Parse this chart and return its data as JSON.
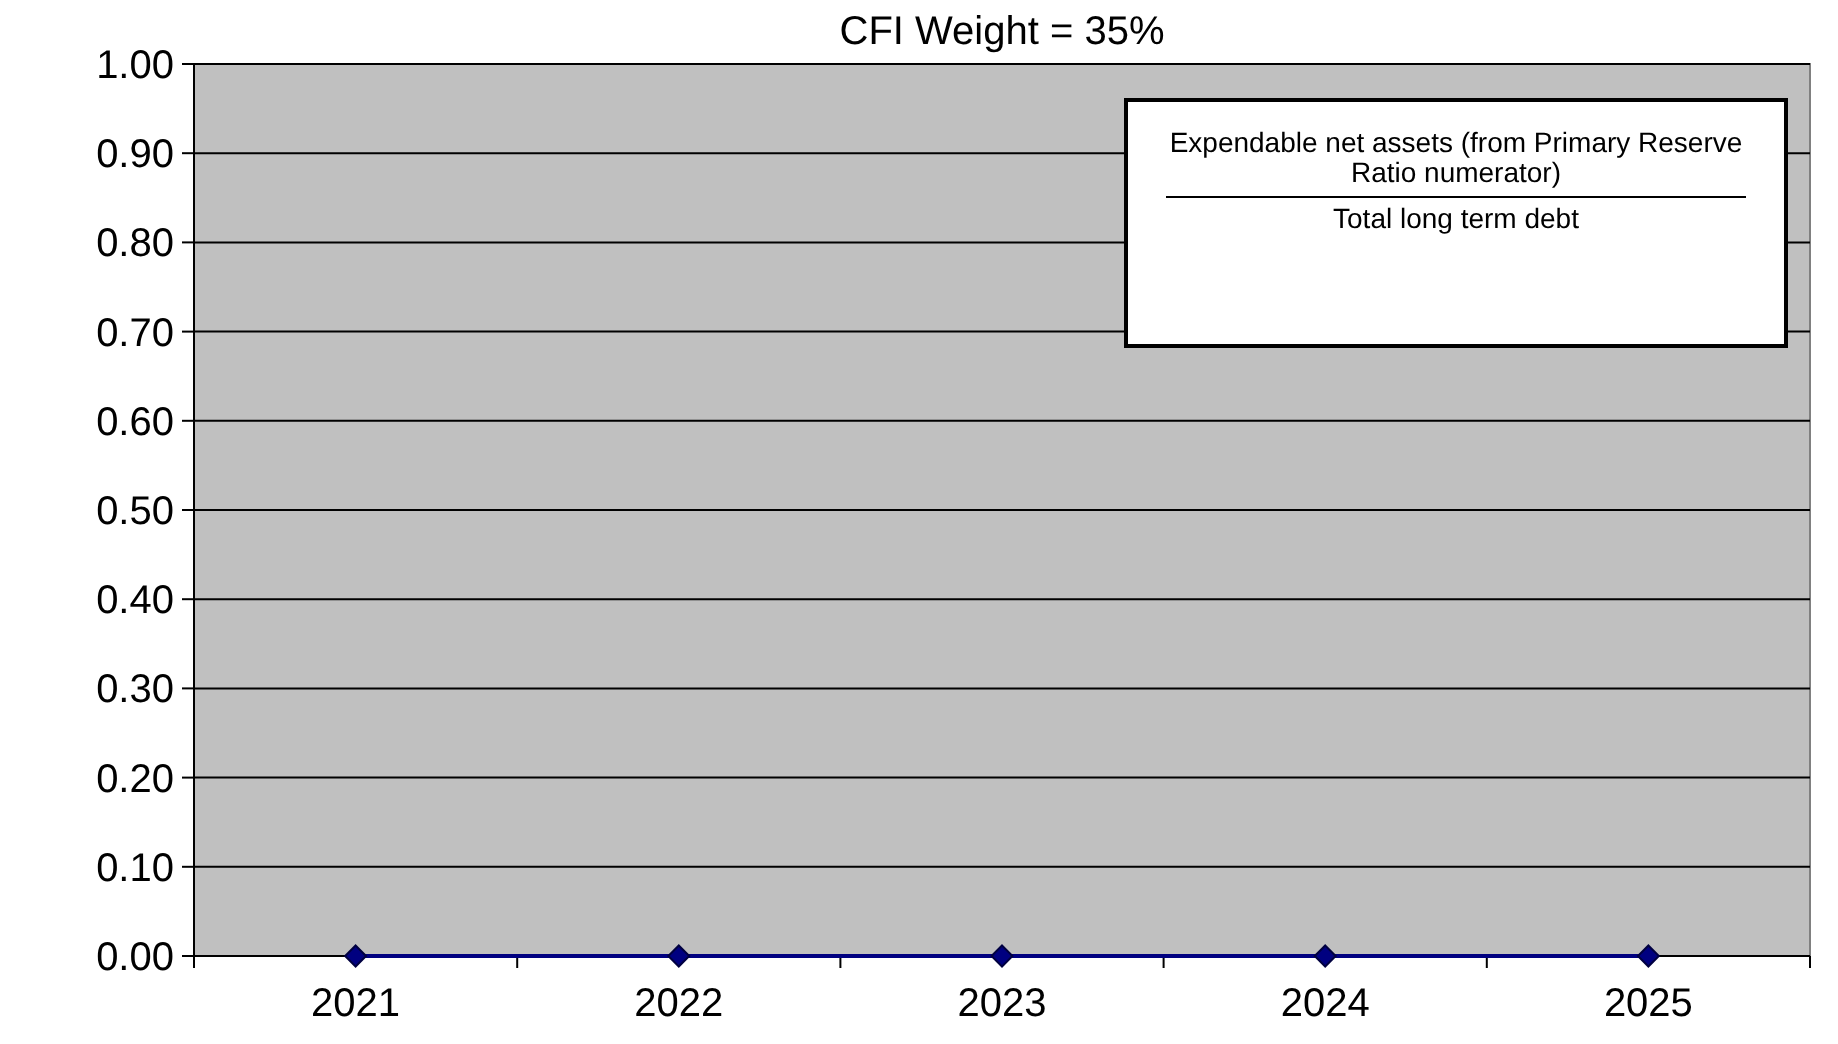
{
  "chart_data": {
    "type": "line",
    "title": "CFI Weight = 35%",
    "categories": [
      "2021",
      "2022",
      "2023",
      "2024",
      "2025"
    ],
    "series": [
      {
        "color": "#000080",
        "values": [
          0,
          0,
          0,
          0,
          0
        ]
      }
    ],
    "ylim": [
      0,
      1
    ],
    "yticks": [
      {
        "value": 0,
        "label": "0.00"
      },
      {
        "value": 0.1,
        "label": "0.10"
      },
      {
        "value": 0.2,
        "label": "0.20"
      },
      {
        "value": 0.3,
        "label": "0.30"
      },
      {
        "value": 0.4,
        "label": "0.40"
      },
      {
        "value": 0.5,
        "label": "0.50"
      },
      {
        "value": 0.6,
        "label": "0.60"
      },
      {
        "value": 0.7,
        "label": "0.70"
      },
      {
        "value": 0.8,
        "label": "0.80"
      },
      {
        "value": 0.9,
        "label": "0.90"
      },
      {
        "value": 1,
        "label": "1.00"
      }
    ],
    "grid": "y",
    "marker": "diamond",
    "line_style": "solid",
    "annotations": [
      "Expendable net assets (from Primary Reserve Ratio numerator)",
      "Total long term debt"
    ]
  }
}
